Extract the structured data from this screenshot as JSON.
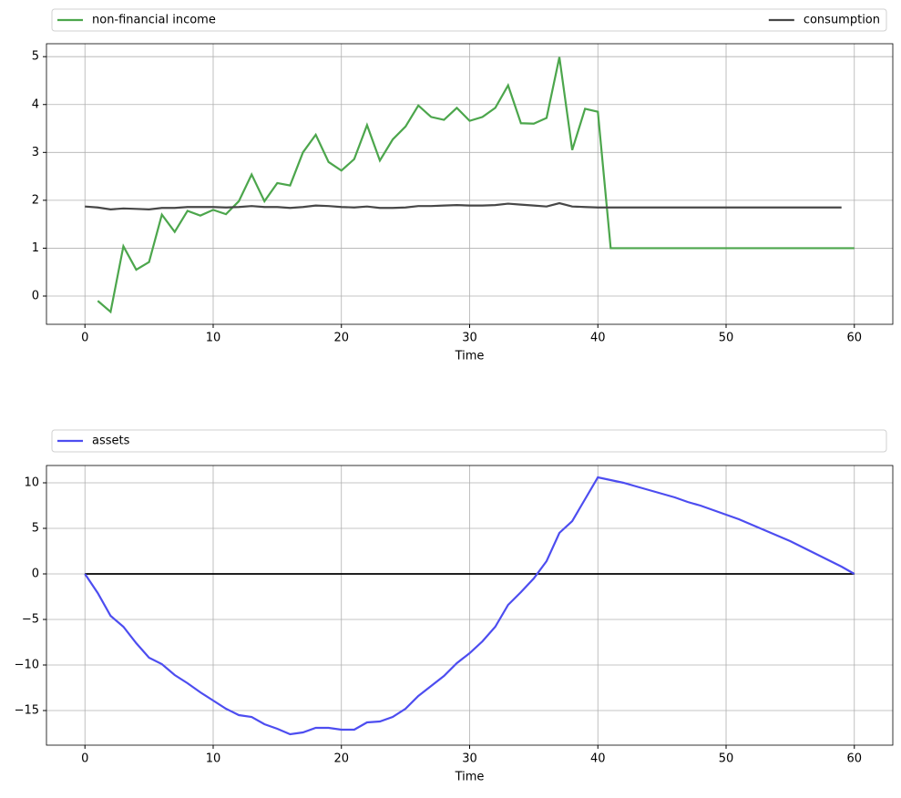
{
  "chart_data": [
    {
      "type": "line",
      "xlabel": "Time",
      "xlim": [
        -3,
        63
      ],
      "ylim": [
        -0.59,
        5.27
      ],
      "xticks": [
        0,
        10,
        20,
        30,
        40,
        50,
        60
      ],
      "yticks": [
        0,
        1,
        2,
        3,
        4,
        5
      ],
      "grid": true,
      "legend": "top-expand",
      "series": [
        {
          "name": "non-financial income",
          "color": "#4ca64c",
          "x": [
            1,
            2,
            3,
            4,
            5,
            6,
            7,
            8,
            9,
            10,
            11,
            12,
            13,
            14,
            15,
            16,
            17,
            18,
            19,
            20,
            21,
            22,
            23,
            24,
            25,
            26,
            27,
            28,
            29,
            30,
            31,
            32,
            33,
            34,
            35,
            36,
            37,
            38,
            39,
            40,
            41,
            42,
            43,
            44,
            45,
            46,
            47,
            48,
            49,
            50,
            51,
            52,
            53,
            54,
            55,
            56,
            57,
            58,
            59,
            60
          ],
          "values": [
            -0.1,
            -0.33,
            1.04,
            0.55,
            0.71,
            1.7,
            1.34,
            1.78,
            1.68,
            1.8,
            1.71,
            1.98,
            2.54,
            1.98,
            2.36,
            2.31,
            3.0,
            3.37,
            2.8,
            2.62,
            2.86,
            3.57,
            2.83,
            3.27,
            3.54,
            3.98,
            3.74,
            3.68,
            3.93,
            3.66,
            3.74,
            3.93,
            4.4,
            3.61,
            3.6,
            3.72,
            4.99,
            3.05,
            3.91,
            3.85,
            1,
            1,
            1,
            1,
            1,
            1,
            1,
            1,
            1,
            1,
            1,
            1,
            1,
            1,
            1,
            1,
            1,
            1,
            1,
            1
          ]
        },
        {
          "name": "consumption",
          "color": "#474747",
          "x": [
            0,
            1,
            2,
            3,
            4,
            5,
            6,
            7,
            8,
            9,
            10,
            11,
            12,
            13,
            14,
            15,
            16,
            17,
            18,
            19,
            20,
            21,
            22,
            23,
            24,
            25,
            26,
            27,
            28,
            29,
            30,
            31,
            32,
            33,
            34,
            35,
            36,
            37,
            38,
            39,
            40,
            41,
            42,
            43,
            44,
            45,
            46,
            47,
            48,
            49,
            50,
            51,
            52,
            53,
            54,
            55,
            56,
            57,
            58,
            59
          ],
          "values": [
            1.87,
            1.85,
            1.81,
            1.83,
            1.82,
            1.81,
            1.84,
            1.84,
            1.86,
            1.86,
            1.86,
            1.85,
            1.86,
            1.88,
            1.86,
            1.86,
            1.84,
            1.86,
            1.89,
            1.88,
            1.86,
            1.85,
            1.87,
            1.84,
            1.84,
            1.85,
            1.88,
            1.88,
            1.89,
            1.9,
            1.89,
            1.89,
            1.9,
            1.93,
            1.91,
            1.89,
            1.87,
            1.94,
            1.87,
            1.86,
            1.85,
            1.85,
            1.85,
            1.85,
            1.85,
            1.85,
            1.85,
            1.85,
            1.85,
            1.85,
            1.85,
            1.85,
            1.85,
            1.85,
            1.85,
            1.85,
            1.85,
            1.85,
            1.85,
            1.85
          ]
        }
      ]
    },
    {
      "type": "line",
      "xlabel": "Time",
      "xlim": [
        -3,
        63
      ],
      "ylim": [
        -18.8,
        11.9
      ],
      "xticks": [
        0,
        10,
        20,
        30,
        40,
        50,
        60
      ],
      "yticks": [
        {
          "value": -15,
          "label": "−15"
        },
        {
          "value": -10,
          "label": "−10"
        },
        {
          "value": -5,
          "label": "−5"
        },
        0,
        5,
        10
      ],
      "grid": true,
      "legend": "top-expand",
      "series": [
        {
          "color": "#000000",
          "x": [
            0,
            60
          ],
          "values": [
            0,
            0
          ]
        },
        {
          "name": "assets",
          "color": "#4d4df0",
          "x": [
            0,
            1,
            2,
            3,
            4,
            5,
            6,
            7,
            8,
            9,
            10,
            11,
            12,
            13,
            14,
            15,
            16,
            17,
            18,
            19,
            20,
            21,
            22,
            23,
            24,
            25,
            26,
            27,
            28,
            29,
            30,
            31,
            32,
            33,
            34,
            35,
            36,
            37,
            38,
            39,
            40,
            41,
            42,
            43,
            44,
            45,
            46,
            47,
            48,
            49,
            50,
            51,
            52,
            53,
            54,
            55,
            56,
            57,
            58,
            59,
            60
          ],
          "values": [
            0,
            -2.1,
            -4.6,
            -5.8,
            -7.6,
            -9.2,
            -9.9,
            -11.1,
            -12.0,
            -13.0,
            -13.9,
            -14.8,
            -15.5,
            -15.7,
            -16.5,
            -17.0,
            -17.6,
            -17.4,
            -16.9,
            -16.9,
            -17.1,
            -17.1,
            -16.3,
            -16.2,
            -15.7,
            -14.8,
            -13.4,
            -12.3,
            -11.2,
            -9.8,
            -8.7,
            -7.4,
            -5.8,
            -3.4,
            -2.0,
            -0.5,
            1.4,
            4.5,
            5.8,
            8.2,
            10.6,
            10.3,
            10.0,
            9.6,
            9.2,
            8.8,
            8.4,
            7.9,
            7.5,
            7.0,
            6.5,
            6.0,
            5.4,
            4.8,
            4.2,
            3.6,
            2.9,
            2.2,
            1.5,
            0.8,
            0
          ]
        }
      ]
    }
  ]
}
